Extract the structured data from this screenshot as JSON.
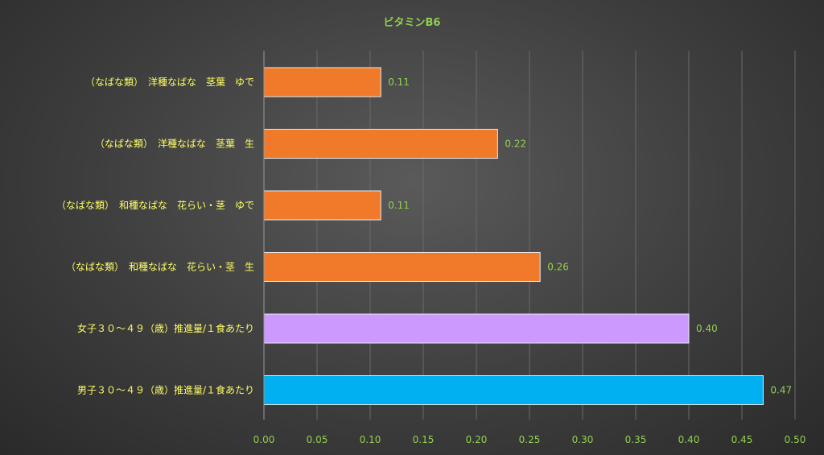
{
  "chart_data": {
    "type": "bar",
    "orientation": "horizontal",
    "title": "ビタミンB6",
    "categories": [
      "（なばな類）　洋種なばな　茎葉　ゆで",
      "（なばな類）　洋種なばな　茎葉　生",
      "（なばな類）　和種なばな　花らい・茎　ゆで",
      "（なばな類）　和種なばな　花らい・茎　生",
      "女子３０～４９（歳）推進量/１食あたり",
      "男子３０～４９（歳）推進量/１食あたり"
    ],
    "values": [
      0.11,
      0.22,
      0.11,
      0.26,
      0.4,
      0.47
    ],
    "value_labels": [
      "0.11",
      "0.22",
      "0.11",
      "0.26",
      "0.40",
      "0.47"
    ],
    "colors": [
      "#f07a2a",
      "#f07a2a",
      "#f07a2a",
      "#f07a2a",
      "#cc99ff",
      "#00b0f0"
    ],
    "xlim": [
      0,
      0.5
    ],
    "xticks": [
      "0.00",
      "0.05",
      "0.10",
      "0.15",
      "0.20",
      "0.25",
      "0.30",
      "0.35",
      "0.40",
      "0.45",
      "0.50"
    ],
    "grid": true,
    "legend": "none"
  }
}
